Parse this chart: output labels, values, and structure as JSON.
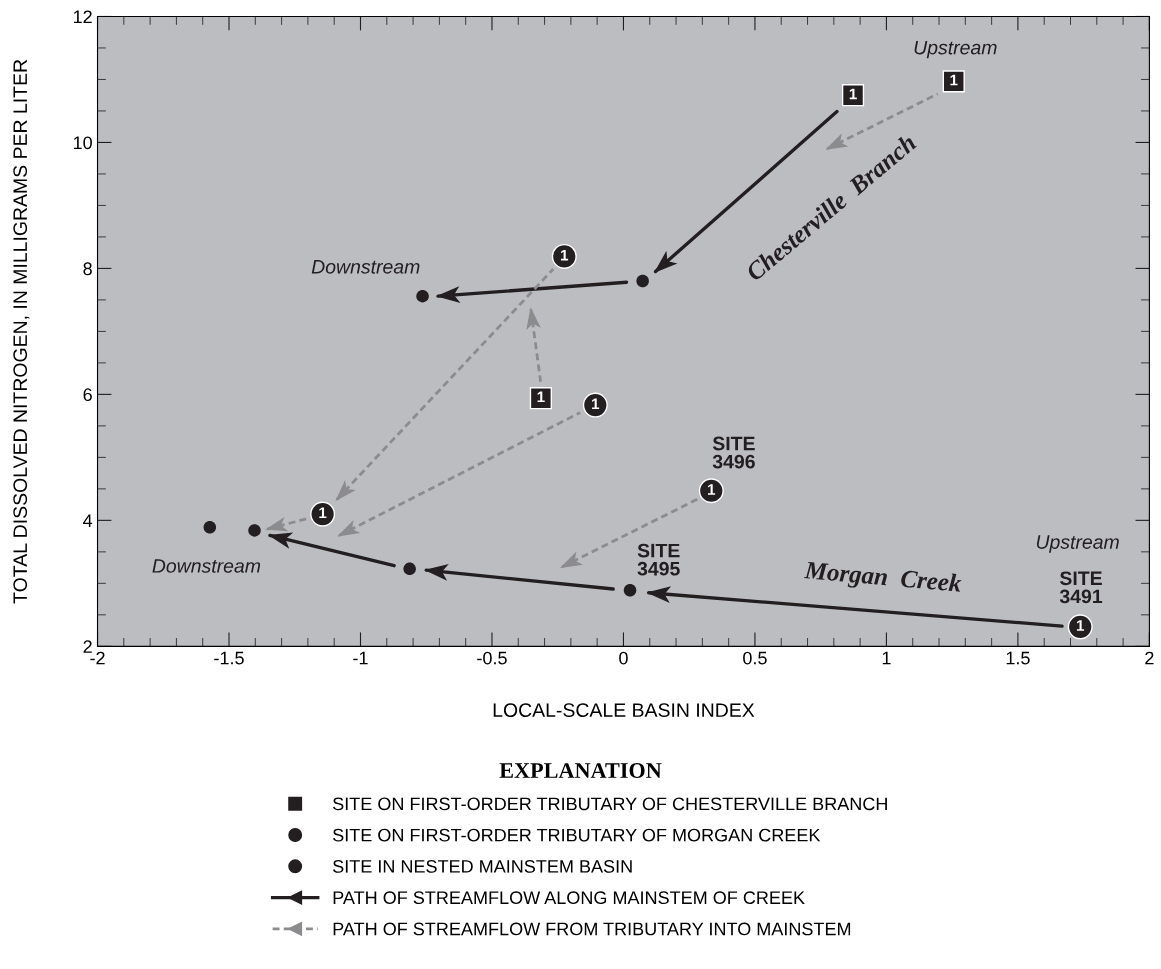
{
  "chart_data": {
    "type": "scatter",
    "xlabel": "LOCAL-SCALE BASIN INDEX",
    "ylabel": "TOTAL DISSOLVED NITROGEN, IN MILLIGRAMS PER LITER",
    "legend_title": "EXPLANATION",
    "xlim": [
      -2,
      2
    ],
    "ylim": [
      2,
      12
    ],
    "xticks": [
      -2,
      -1.5,
      -1,
      -0.5,
      0,
      0.5,
      1,
      1.5,
      2
    ],
    "yticks": [
      2,
      4,
      6,
      8,
      10,
      12
    ],
    "grid": false,
    "legend": "bottom",
    "series": [
      {
        "name": "SITE ON FIRST-ORDER TRIBUTARY OF CHESTERVILLE BRANCH",
        "marker": "square",
        "color": "#231f20",
        "x": [
          0.873,
          1.256,
          -0.314
        ],
        "values": [
          10.75,
          10.97,
          5.94
        ]
      },
      {
        "name": "SITE ON FIRST-ORDER TRIBUTARY OF MORGAN CREEK",
        "marker": "circle",
        "color": "#231f20",
        "x": [
          -0.225,
          -0.107,
          0.334,
          -1.144,
          1.737
        ],
        "values": [
          8.19,
          5.83,
          4.47,
          4.1,
          2.31
        ]
      },
      {
        "name": "SITE IN NESTED MAINSTEM BASIN",
        "marker": "circle",
        "color": "#231f20",
        "x": [
          -0.764,
          0.073,
          -1.573,
          -1.403,
          -0.813,
          0.025
        ],
        "values": [
          7.56,
          7.8,
          3.89,
          3.84,
          3.23,
          2.89
        ]
      },
      {
        "name": "PATH OF STREAMFLOW ALONG MAINSTEM OF CREEK",
        "type": "line",
        "line_style": "solid",
        "marker": "none",
        "color": "#231f20",
        "x": [
          1.668,
          0.096,
          null,
          -0.039,
          -0.75,
          null,
          -0.872,
          -1.344,
          null,
          0.812,
          0.122,
          null,
          0.012,
          -0.705
        ],
        "values": [
          2.32,
          2.85,
          null,
          2.91,
          3.21,
          null,
          3.28,
          3.76,
          null,
          10.49,
          7.95,
          null,
          7.78,
          7.56
        ]
      },
      {
        "name": "PATH OF STREAMFLOW FROM TRIBUTARY INTO MAINSTEM",
        "type": "line",
        "line_style": "dashed",
        "marker": "none",
        "color": "#8c8c8e",
        "x": [
          1.195,
          0.775,
          null,
          -0.267,
          -1.09,
          null,
          -0.315,
          -0.352,
          null,
          -0.165,
          -1.081,
          null,
          -1.191,
          -1.355,
          null,
          0.283,
          -0.234
        ],
        "values": [
          10.77,
          9.9,
          null,
          7.99,
          4.33,
          null,
          6.2,
          7.35,
          null,
          5.71,
          3.76,
          null,
          4.04,
          3.86,
          null,
          4.34,
          3.26
        ]
      }
    ],
    "annotations": [
      "Downstream",
      "Downstream",
      "Upstream",
      "Upstream",
      "SITE\n3496",
      "SITE\n3495",
      "SITE\n3491",
      "Chesterville  Branch",
      "Morgan  Creek",
      {
        "text": "1",
        "x": 0.873,
        "y": 10.75
      },
      {
        "text": "1",
        "x": 1.256,
        "y": 10.97
      },
      {
        "text": "1",
        "x": -0.314,
        "y": 5.94
      },
      {
        "text": "1",
        "x": -0.225,
        "y": 8.19
      },
      {
        "text": "1",
        "x": -0.107,
        "y": 5.83
      },
      {
        "text": "1",
        "x": 0.334,
        "y": 4.47
      },
      {
        "text": "1",
        "x": -1.144,
        "y": 4.1
      },
      {
        "text": "1",
        "x": 1.737,
        "y": 2.31
      }
    ]
  }
}
